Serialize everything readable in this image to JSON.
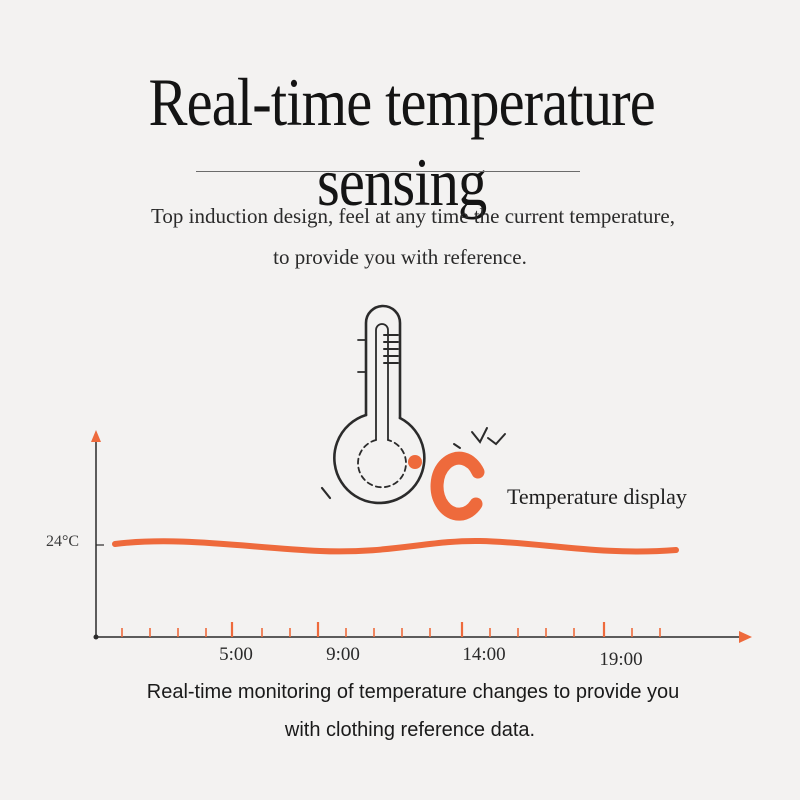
{
  "header": {
    "title": "Real-time temperature sensing",
    "subtitle_line1": "Top induction design, feel at any time the current temperature,",
    "subtitle_line2": "to provide you with reference."
  },
  "thermometer": {
    "icon": "thermometer-icon",
    "unit_symbol": "°C",
    "label": "Temperature display"
  },
  "graph": {
    "y_label": "24°C",
    "time_labels": [
      "5:00",
      "9:00",
      "14:00",
      "19:00"
    ]
  },
  "caption": {
    "line1": "Real-time monitoring of temperature changes to provide you",
    "line2": "with clothing reference data."
  },
  "colors": {
    "accent": "#ee6a3c",
    "background": "#f3f2f1",
    "text": "#1e1e1e"
  }
}
